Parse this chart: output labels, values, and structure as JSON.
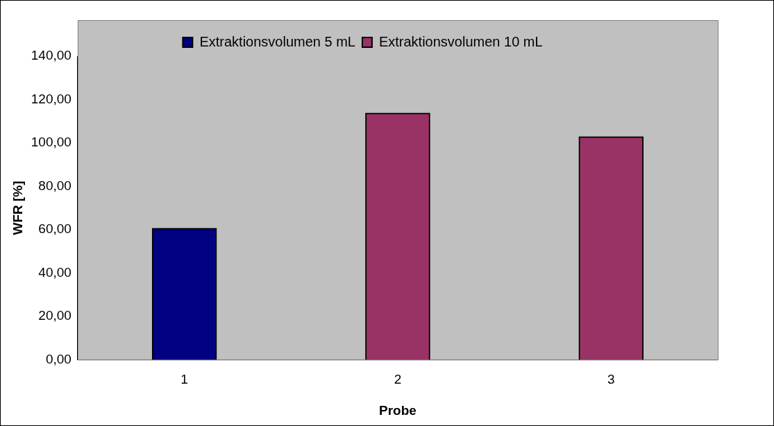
{
  "chart_data": {
    "type": "bar",
    "xlabel": "Probe",
    "ylabel": "WFR [%]",
    "categories": [
      "1",
      "2",
      "3"
    ],
    "series": [
      {
        "name": "Extraktionsvolumen 5 mL",
        "color": "#000080",
        "values": [
          60.7,
          null,
          null
        ]
      },
      {
        "name": "Extraktionsvolumen 10 mL",
        "color": "#993366",
        "values": [
          null,
          113.8,
          102.9
        ]
      }
    ],
    "ylim": [
      0,
      140
    ],
    "yticks": [
      {
        "value": 0,
        "label": "0,00"
      },
      {
        "value": 20,
        "label": "20,00"
      },
      {
        "value": 40,
        "label": "40,00"
      },
      {
        "value": 60,
        "label": "60,00"
      },
      {
        "value": 80,
        "label": "80,00"
      },
      {
        "value": 100,
        "label": "100,00"
      },
      {
        "value": 120,
        "label": "120,00"
      },
      {
        "value": 140,
        "label": "140,00"
      }
    ],
    "grid": false,
    "legend": "top"
  }
}
